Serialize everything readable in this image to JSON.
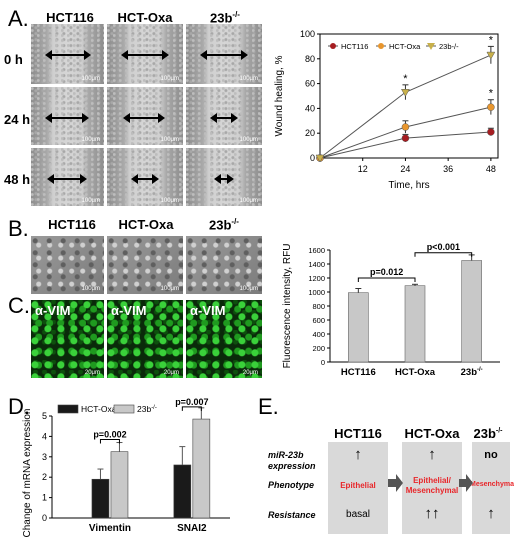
{
  "panelA": {
    "letter": "A.",
    "columns": [
      "HCT116",
      "HCT-Oxa",
      "23b"
    ],
    "column_sup": [
      "",
      "",
      "-/-"
    ],
    "rows": [
      "0 h",
      "24 h",
      "48 h"
    ],
    "scale": "100μm",
    "colors": {
      "hct116": "#a61d21",
      "hctoxa": "#e8962e",
      "ko": "#c8b04a"
    }
  },
  "panelB": {
    "letter": "B.",
    "columns": [
      "HCT116",
      "HCT-Oxa",
      "23b"
    ],
    "column_sup": [
      "",
      "",
      "-/-"
    ],
    "scale": "100μm"
  },
  "panelC": {
    "letter": "C.",
    "labels": [
      "α-VIM",
      "α-VIM",
      "α-VIM"
    ],
    "scale": "20μm"
  },
  "panelD": {
    "letter": "D."
  },
  "panelE": {
    "letter": "E.",
    "headers": [
      "HCT116",
      "HCT-Oxa",
      "23b"
    ],
    "header_sup": [
      "",
      "",
      "-/-"
    ],
    "row_labels": [
      "miR-23b expression",
      "Phenotype",
      "Resistance"
    ],
    "mir_values": [
      "↑",
      "↑",
      "no"
    ],
    "phenotypes": [
      "Epithelial",
      "Epithelial/ Mesenchymal",
      "Mesenchymal"
    ],
    "resistance": [
      "basal",
      "↑↑",
      "↑"
    ],
    "phenotype_color": "#e8262a"
  },
  "chart_data": [
    {
      "type": "line",
      "x": [
        0,
        24,
        48
      ],
      "xlabel": "Time, hrs",
      "ylabel": "Wound healing, %",
      "xlim": [
        0,
        50
      ],
      "ylim": [
        0,
        100
      ],
      "xticks": [
        12,
        24,
        36,
        48
      ],
      "yticks": [
        0,
        20,
        40,
        60,
        80,
        100
      ],
      "series": [
        {
          "name": "HCT116",
          "values": [
            0,
            16,
            21
          ],
          "err": [
            0,
            3,
            3
          ],
          "color": "#a61d21",
          "marker": "circle"
        },
        {
          "name": "HCT-Oxa",
          "values": [
            0,
            25,
            41
          ],
          "err": [
            0,
            5,
            6
          ],
          "color": "#e8962e",
          "marker": "circle"
        },
        {
          "name": "23b-/-",
          "values": [
            0,
            53,
            83
          ],
          "err": [
            0,
            6,
            7
          ],
          "color": "#c8b04a",
          "marker": "triangle-down"
        }
      ],
      "annotations": [
        "*",
        "*",
        "*"
      ],
      "legend": "top-left"
    },
    {
      "type": "bar",
      "categories": [
        "HCT116",
        "HCT-Oxa",
        "23b-/-"
      ],
      "values": [
        990,
        1090,
        1450
      ],
      "err": [
        60,
        20,
        80
      ],
      "ylabel": "Fluorescence intensity, RFU",
      "ylim": [
        0,
        1600
      ],
      "yticks": [
        0,
        200,
        400,
        600,
        800,
        1000,
        1200,
        1400,
        1600
      ],
      "annotations": [
        "p=0.012",
        "p<0.001"
      ]
    },
    {
      "type": "bar",
      "categories": [
        "Vimentin",
        "SNAI2"
      ],
      "ylabel": "Change of mRNA expression",
      "ylim": [
        0,
        5
      ],
      "yticks": [
        0,
        1,
        2,
        3,
        4,
        5
      ],
      "series": [
        {
          "name": "HCT-Oxa",
          "values": [
            1.9,
            2.6
          ],
          "err": [
            0.5,
            0.9
          ],
          "color": "#1a1a1a"
        },
        {
          "name": "23b-/-",
          "values": [
            3.25,
            4.85
          ],
          "err": [
            0.45,
            0.55
          ],
          "color": "#c8c8c8"
        }
      ],
      "annotations": [
        "p=0.002",
        "p=0.007"
      ],
      "legend": "top"
    }
  ]
}
